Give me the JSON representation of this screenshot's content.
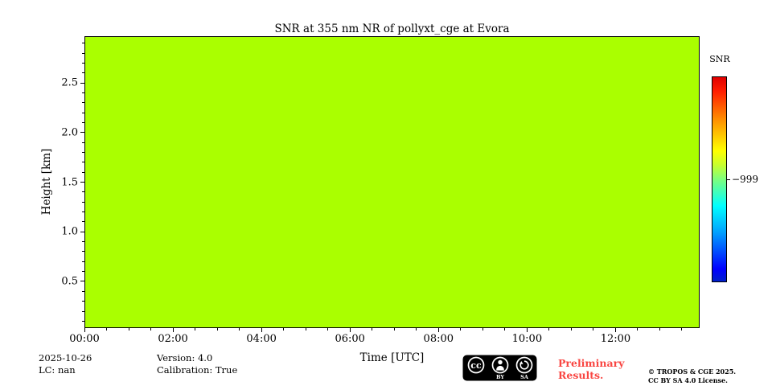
{
  "chart_data": {
    "type": "heatmap",
    "title": "SNR at 355 nm NR of pollyxt_cge at Evora",
    "xlabel": "Time [UTC]",
    "ylabel": "Height [km]",
    "x_axis": {
      "range_hours": [
        0,
        13.9
      ],
      "major_ticks": [
        {
          "hour": 0,
          "label": "00:00"
        },
        {
          "hour": 2,
          "label": "02:00"
        },
        {
          "hour": 4,
          "label": "04:00"
        },
        {
          "hour": 6,
          "label": "06:00"
        },
        {
          "hour": 8,
          "label": "08:00"
        },
        {
          "hour": 10,
          "label": "10:00"
        },
        {
          "hour": 12,
          "label": "12:00"
        }
      ],
      "minor_step_hours": 0.5
    },
    "y_axis": {
      "range_km": [
        0.03,
        2.97
      ],
      "major_ticks": [
        {
          "km": 0.5,
          "label": "0.5"
        },
        {
          "km": 1.0,
          "label": "1.0"
        },
        {
          "km": 1.5,
          "label": "1.5"
        },
        {
          "km": 2.0,
          "label": "2.0"
        },
        {
          "km": 2.5,
          "label": "2.5"
        }
      ],
      "minor_step_km": 0.1
    },
    "values": "uniform field, every cell equals the fill value",
    "uniform_value": -999,
    "plot_fill_color": "#aaff00",
    "colorbar": {
      "label": "SNR",
      "tick_label": "−999",
      "tick_fraction_from_top": 0.5,
      "colormap": "jet"
    },
    "grid": false
  },
  "footer": {
    "date": "2025-10-26",
    "lc": "LC: nan",
    "version": "Version: 4.0",
    "calibration": "Calibration: True",
    "preliminary_line1": "Preliminary",
    "preliminary_line2": "Results.",
    "preliminary_color": "#f94541",
    "copyright_line1": "© TROPOS & CGE 2025.",
    "copyright_line2": "CC BY SA 4.0 License."
  },
  "license_badge": {
    "cc_label": "cc",
    "by_label": "BY",
    "sa_label": "SA"
  }
}
